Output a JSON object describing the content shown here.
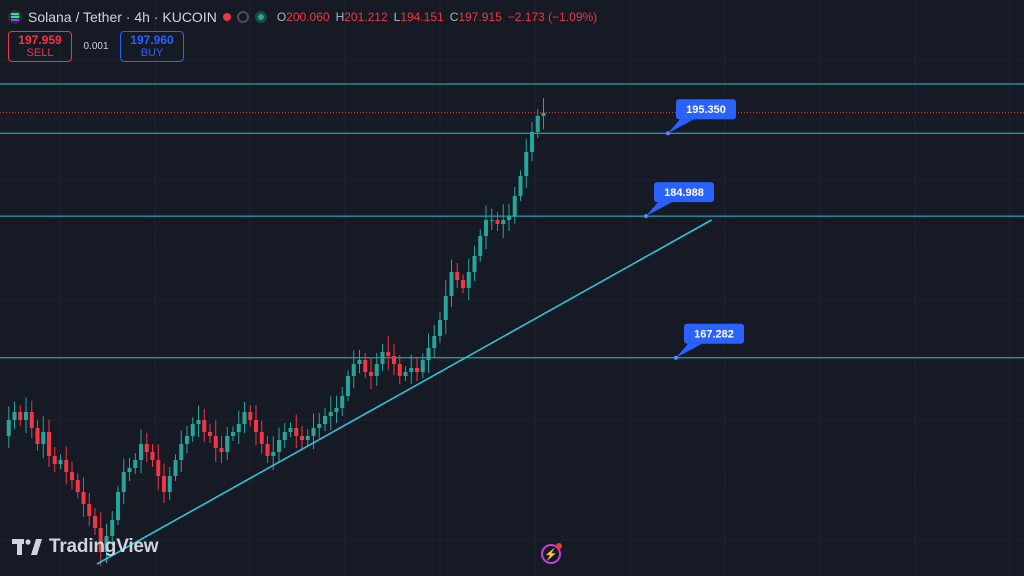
{
  "header": {
    "symbol_icon": "solana-icon",
    "title": "Solana / Tether · 4h · KUCOIN",
    "open_label": "O",
    "open": "200.060",
    "high_label": "H",
    "high": "201.212",
    "low_label": "L",
    "low": "194.151",
    "close_label": "C",
    "close": "197.915",
    "change": "−2.173 (−1.09%)"
  },
  "trade": {
    "sell_price": "197.959",
    "sell_label": "SELL",
    "spread": "0.001",
    "buy_price": "197.960",
    "buy_label": "BUY"
  },
  "branding": {
    "logo_icon": "tradingview-logo-icon",
    "name": "TradingView"
  },
  "footer": {
    "alert_icon": "lightning-bolt-icon"
  },
  "colors": {
    "background": "#161a25",
    "up": "#26a69a",
    "down": "#f23645",
    "level_line": "#22c4d6",
    "callout": "#2962ff"
  },
  "chart_data": {
    "type": "candlestick",
    "symbol": "Solana / Tether",
    "timeframe": "4h",
    "exchange": "KUCOIN",
    "price_range": [
      140,
      212
    ],
    "last_price": 197.915,
    "horizontal_levels": [
      201.5,
      195.35,
      184.988,
      167.282
    ],
    "level_labels": [
      "195.350",
      "184.988",
      "167.282"
    ],
    "trendline": {
      "start_bar": 12,
      "start_price": 141.5,
      "end_bar": 94,
      "end_price": 184.5
    },
    "closes": [
      157.5,
      159.5,
      160.5,
      159.5,
      160.5,
      158.5,
      156.5,
      158,
      155,
      154,
      154.5,
      153,
      152,
      150.5,
      149,
      147.5,
      146,
      143,
      145,
      147,
      150.5,
      153,
      153.5,
      154.5,
      156.5,
      155.5,
      154.5,
      152.5,
      150.5,
      152.5,
      154.5,
      156.5,
      157.5,
      159,
      159.5,
      158,
      157.5,
      156,
      155.5,
      157.5,
      158,
      159,
      160.5,
      159.5,
      158,
      156.5,
      155,
      155.5,
      157,
      158,
      158.5,
      157.5,
      157,
      157.5,
      158.5,
      159,
      160,
      160.5,
      161,
      162.5,
      165,
      166.5,
      167,
      165.5,
      165,
      166.5,
      168,
      167.5,
      166.5,
      165,
      165.5,
      166,
      165.5,
      167,
      168.5,
      170,
      172,
      175,
      178,
      177,
      176,
      178,
      180,
      182.5,
      184.5,
      184.5,
      184,
      184.5,
      185,
      187.5,
      190,
      193,
      195.5,
      197.5,
      197.915
    ]
  }
}
